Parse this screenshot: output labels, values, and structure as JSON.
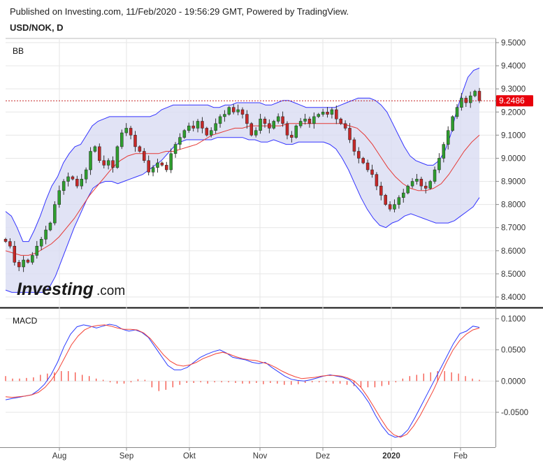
{
  "header": {
    "publish_text": "Published on Investing.com, 11/Feb/2020 - 19:56:29 GMT, Powered by TradingView.",
    "symbol": "USD/NOK, D"
  },
  "logo": {
    "main": "Investing",
    "suffix": ".com"
  },
  "colors": {
    "bull": "#2e9e2e",
    "bear": "#c62828",
    "wick": "#333333",
    "bb_band": "#3333ff",
    "bb_fill": "#d9dcf3",
    "bb_mid": "#e53935",
    "macd_line": "#2b3bff",
    "signal_line": "#f44336",
    "histogram": "#f44336",
    "price_tag": "#e8000b",
    "grid": "#e6e6e6"
  },
  "chart_data": [
    {
      "type": "candlestick",
      "panel": "price",
      "label": "BB",
      "x_labels": [
        "Aug",
        "Sep",
        "Okt",
        "Nov",
        "Dez",
        "2020",
        "Feb"
      ],
      "y_ticks": [
        "9.5000",
        "9.4000",
        "9.3000",
        "9.2000",
        "9.1000",
        "9.0000",
        "8.9000",
        "8.8000",
        "8.7000",
        "8.6000",
        "8.5000",
        "8.4000"
      ],
      "ylim": [
        8.37,
        9.5
      ],
      "last_price": "9.2486",
      "last_price_value": 9.2486,
      "closes": [
        8.64,
        8.62,
        8.55,
        8.53,
        8.56,
        8.55,
        8.58,
        8.62,
        8.65,
        8.69,
        8.72,
        8.8,
        8.86,
        8.9,
        8.92,
        8.91,
        8.88,
        8.91,
        8.95,
        9.03,
        9.05,
        8.99,
        8.97,
        8.99,
        8.96,
        9.05,
        9.11,
        9.13,
        9.1,
        9.05,
        9.03,
        8.99,
        8.94,
        8.96,
        8.98,
        8.97,
        8.95,
        9.02,
        9.06,
        9.09,
        9.12,
        9.14,
        9.13,
        9.16,
        9.13,
        9.1,
        9.12,
        9.15,
        9.18,
        9.19,
        9.22,
        9.2,
        9.21,
        9.19,
        9.15,
        9.1,
        9.12,
        9.17,
        9.15,
        9.13,
        9.16,
        9.18,
        9.15,
        9.1,
        9.09,
        9.14,
        9.16,
        9.17,
        9.15,
        9.18,
        9.19,
        9.2,
        9.19,
        9.21,
        9.17,
        9.15,
        9.13,
        9.08,
        9.03,
        9.0,
        8.98,
        8.95,
        8.93,
        8.88,
        8.84,
        8.8,
        8.78,
        8.8,
        8.83,
        8.85,
        8.88,
        8.9,
        8.91,
        8.88,
        8.87,
        8.9,
        8.95,
        9.0,
        9.06,
        9.12,
        9.18,
        9.22,
        9.26,
        9.24,
        9.27,
        9.29,
        9.2486
      ],
      "bb_upper": [
        8.77,
        8.75,
        8.7,
        8.64,
        8.64,
        8.69,
        8.75,
        8.82,
        8.88,
        8.92,
        8.98,
        9.02,
        9.05,
        9.06,
        9.1,
        9.14,
        9.16,
        9.17,
        9.18,
        9.18,
        9.18,
        9.18,
        9.18,
        9.18,
        9.18,
        9.18,
        9.19,
        9.21,
        9.22,
        9.23,
        9.23,
        9.23,
        9.23,
        9.23,
        9.23,
        9.23,
        9.22,
        9.22,
        9.23,
        9.23,
        9.24,
        9.24,
        9.24,
        9.24,
        9.24,
        9.23,
        9.23,
        9.24,
        9.25,
        9.25,
        9.24,
        9.23,
        9.22,
        9.22,
        9.22,
        9.22,
        9.22,
        9.22,
        9.23,
        9.24,
        9.25,
        9.26,
        9.26,
        9.26,
        9.25,
        9.23,
        9.2,
        9.15,
        9.1,
        9.05,
        9.01,
        8.99,
        8.98,
        8.97,
        8.97,
        8.99,
        9.03,
        9.1,
        9.2,
        9.28,
        9.35,
        9.38,
        9.39
      ],
      "bb_lower": [
        8.43,
        8.42,
        8.42,
        8.42,
        8.42,
        8.42,
        8.42,
        8.44,
        8.49,
        8.56,
        8.63,
        8.7,
        8.76,
        8.82,
        8.87,
        8.89,
        8.9,
        8.9,
        8.89,
        8.9,
        8.91,
        8.92,
        8.93,
        8.95,
        8.97,
        8.99,
        9.02,
        9.05,
        9.07,
        9.08,
        9.08,
        9.08,
        9.08,
        9.08,
        9.09,
        9.09,
        9.09,
        9.09,
        9.09,
        9.08,
        9.08,
        9.07,
        9.07,
        9.08,
        9.07,
        9.06,
        9.06,
        9.07,
        9.07,
        9.07,
        9.07,
        9.07,
        9.06,
        9.04,
        9.0,
        8.95,
        8.89,
        8.83,
        8.78,
        8.74,
        8.71,
        8.7,
        8.72,
        8.73,
        8.75,
        8.76,
        8.75,
        8.74,
        8.73,
        8.72,
        8.72,
        8.72,
        8.73,
        8.75,
        8.77,
        8.79,
        8.83
      ],
      "bb_mid": [
        8.6,
        8.59,
        8.58,
        8.58,
        8.59,
        8.61,
        8.63,
        8.66,
        8.7,
        8.74,
        8.79,
        8.84,
        8.88,
        8.92,
        8.96,
        8.99,
        9.01,
        9.02,
        9.02,
        9.02,
        9.02,
        9.03,
        9.03,
        9.04,
        9.05,
        9.06,
        9.08,
        9.1,
        9.11,
        9.12,
        9.13,
        9.13,
        9.14,
        9.14,
        9.14,
        9.14,
        9.14,
        9.15,
        9.15,
        9.15,
        9.15,
        9.15,
        9.15,
        9.15,
        9.15,
        9.14,
        9.13,
        9.1,
        9.06,
        9.01,
        8.96,
        8.92,
        8.89,
        8.87,
        8.86,
        8.86,
        8.87,
        8.89,
        8.93,
        8.98,
        9.03,
        9.07,
        9.1
      ]
    },
    {
      "type": "line",
      "panel": "macd",
      "label": "MACD",
      "y_ticks": [
        "0.1000",
        "0.0500",
        "0.0000",
        "-0.0500"
      ],
      "ylim": [
        -0.105,
        0.105
      ],
      "macd": [
        -0.03,
        -0.028,
        -0.026,
        -0.024,
        -0.022,
        -0.015,
        -0.005,
        0.01,
        0.03,
        0.055,
        0.075,
        0.087,
        0.09,
        0.088,
        0.085,
        0.088,
        0.091,
        0.089,
        0.083,
        0.08,
        0.082,
        0.078,
        0.07,
        0.055,
        0.04,
        0.025,
        0.018,
        0.018,
        0.022,
        0.03,
        0.038,
        0.043,
        0.047,
        0.05,
        0.045,
        0.038,
        0.036,
        0.034,
        0.03,
        0.028,
        0.03,
        0.022,
        0.015,
        0.008,
        0.003,
        0.001,
        0.0,
        0.002,
        0.005,
        0.008,
        0.01,
        0.008,
        0.006,
        0.002,
        -0.008,
        -0.02,
        -0.035,
        -0.055,
        -0.072,
        -0.085,
        -0.09,
        -0.088,
        -0.078,
        -0.06,
        -0.04,
        -0.02,
        0.0,
        0.02,
        0.04,
        0.06,
        0.076,
        0.08,
        0.088,
        0.086
      ],
      "signal": [
        -0.025,
        -0.026,
        -0.025,
        -0.024,
        -0.022,
        -0.018,
        -0.01,
        0.002,
        0.018,
        0.038,
        0.058,
        0.072,
        0.082,
        0.087,
        0.089,
        0.09,
        0.088,
        0.085,
        0.083,
        0.083,
        0.082,
        0.077,
        0.068,
        0.055,
        0.042,
        0.032,
        0.026,
        0.024,
        0.026,
        0.03,
        0.036,
        0.04,
        0.044,
        0.046,
        0.043,
        0.039,
        0.036,
        0.034,
        0.033,
        0.03,
        0.027,
        0.022,
        0.016,
        0.011,
        0.007,
        0.004,
        0.005,
        0.006,
        0.008,
        0.009,
        0.009,
        0.008,
        0.005,
        0.0,
        -0.01,
        -0.025,
        -0.042,
        -0.06,
        -0.076,
        -0.086,
        -0.09,
        -0.085,
        -0.072,
        -0.055,
        -0.035,
        -0.015,
        0.008,
        0.03,
        0.05,
        0.065,
        0.075,
        0.082,
        0.085
      ],
      "histogram": [
        0.008,
        0.004,
        0.004,
        0.005,
        0.006,
        0.01,
        0.012,
        0.014,
        0.016,
        0.016,
        0.014,
        0.01,
        0.008,
        0.004,
        0.002,
        -0.002,
        -0.004,
        -0.004,
        -0.002,
        0.003,
        0.002,
        -0.01,
        -0.016,
        -0.014,
        -0.01,
        -0.006,
        -0.003,
        -0.003,
        -0.002,
        -0.004,
        -0.002,
        -0.002,
        -0.002,
        -0.003,
        -0.004,
        -0.004,
        -0.003,
        -0.005,
        -0.003,
        -0.004,
        -0.006,
        -0.006,
        -0.005,
        -0.003,
        -0.002,
        -0.002,
        -0.002,
        -0.004,
        -0.004,
        -0.006,
        -0.008,
        -0.01,
        -0.01,
        -0.01,
        -0.008,
        -0.006,
        -0.002,
        0.004,
        0.008,
        0.01,
        0.012,
        0.014,
        0.016,
        0.016,
        0.014,
        0.012,
        0.008,
        0.004,
        0.002
      ]
    }
  ]
}
